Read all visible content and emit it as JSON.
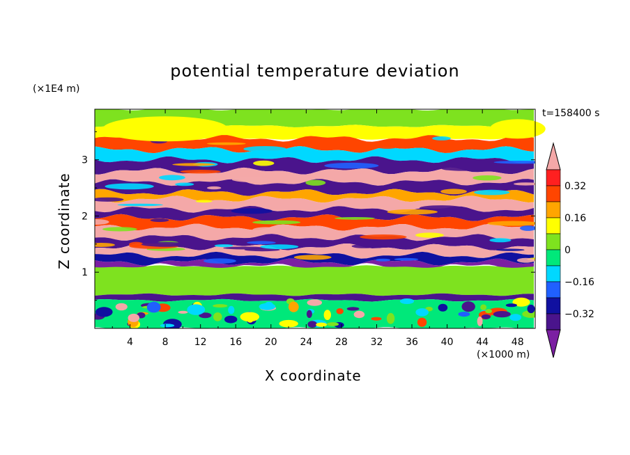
{
  "chart_data": {
    "type": "heatmap",
    "title": "potential temperature deviation",
    "xlabel": "X coordinate",
    "ylabel": "Z coordinate",
    "x_unit": "(×1000 m)",
    "y_unit": "(×1E4 m)",
    "time_label": "t=158400 s",
    "xlim": [
      0,
      50
    ],
    "ylim": [
      0,
      3.9
    ],
    "x_ticks": [
      "4",
      "8",
      "12",
      "16",
      "20",
      "24",
      "28",
      "32",
      "36",
      "40",
      "44",
      "48"
    ],
    "y_ticks": [
      "1",
      "2",
      "3"
    ],
    "colorbar": {
      "levels": [
        -0.4,
        -0.32,
        -0.24,
        -0.16,
        -0.08,
        0,
        0.08,
        0.16,
        0.24,
        0.32,
        0.4
      ],
      "tick_labels": [
        "0.32",
        "0.16",
        "0",
        "−0.16",
        "−0.32"
      ],
      "colors_low_to_high": [
        "#7b1fa2",
        "#4a148c",
        "#1010a0",
        "#2060ff",
        "#00d8ff",
        "#00e87a",
        "#7ee21f",
        "#ffff00",
        "#ffa500",
        "#ff4500",
        "#ff2020",
        "#f4a8a8"
      ]
    },
    "bands": [
      {
        "z0": 3.9,
        "z1": 3.6,
        "value": 0.05
      },
      {
        "z0": 3.6,
        "z1": 3.38,
        "value": 0.12
      },
      {
        "z0": 3.38,
        "z1": 3.18,
        "value": 0.3
      },
      {
        "z0": 3.18,
        "z1": 3.0,
        "value": -0.1
      },
      {
        "z0": 3.0,
        "z1": 2.8,
        "value": -0.36
      },
      {
        "z0": 2.8,
        "z1": 2.6,
        "value": 0.42
      },
      {
        "z0": 2.6,
        "z1": 2.42,
        "value": -0.38
      },
      {
        "z0": 2.42,
        "z1": 2.3,
        "value": 0.2
      },
      {
        "z0": 2.3,
        "z1": 2.12,
        "value": 0.42
      },
      {
        "z0": 2.12,
        "z1": 1.97,
        "value": -0.36
      },
      {
        "z0": 1.97,
        "z1": 1.8,
        "value": 0.28
      },
      {
        "z0": 1.8,
        "z1": 1.62,
        "value": 0.42
      },
      {
        "z0": 1.62,
        "z1": 1.45,
        "value": -0.38
      },
      {
        "z0": 1.45,
        "z1": 1.3,
        "value": 0.42
      },
      {
        "z0": 1.3,
        "z1": 1.18,
        "value": -0.3
      },
      {
        "z0": 1.18,
        "z1": 1.1,
        "value": -0.42
      },
      {
        "z0": 1.1,
        "z1": 0.6,
        "value": 0.02
      },
      {
        "z0": 0.6,
        "z1": 0.5,
        "value": -0.4
      },
      {
        "z0": 0.5,
        "z1": 0.0,
        "value": -0.05
      }
    ]
  }
}
